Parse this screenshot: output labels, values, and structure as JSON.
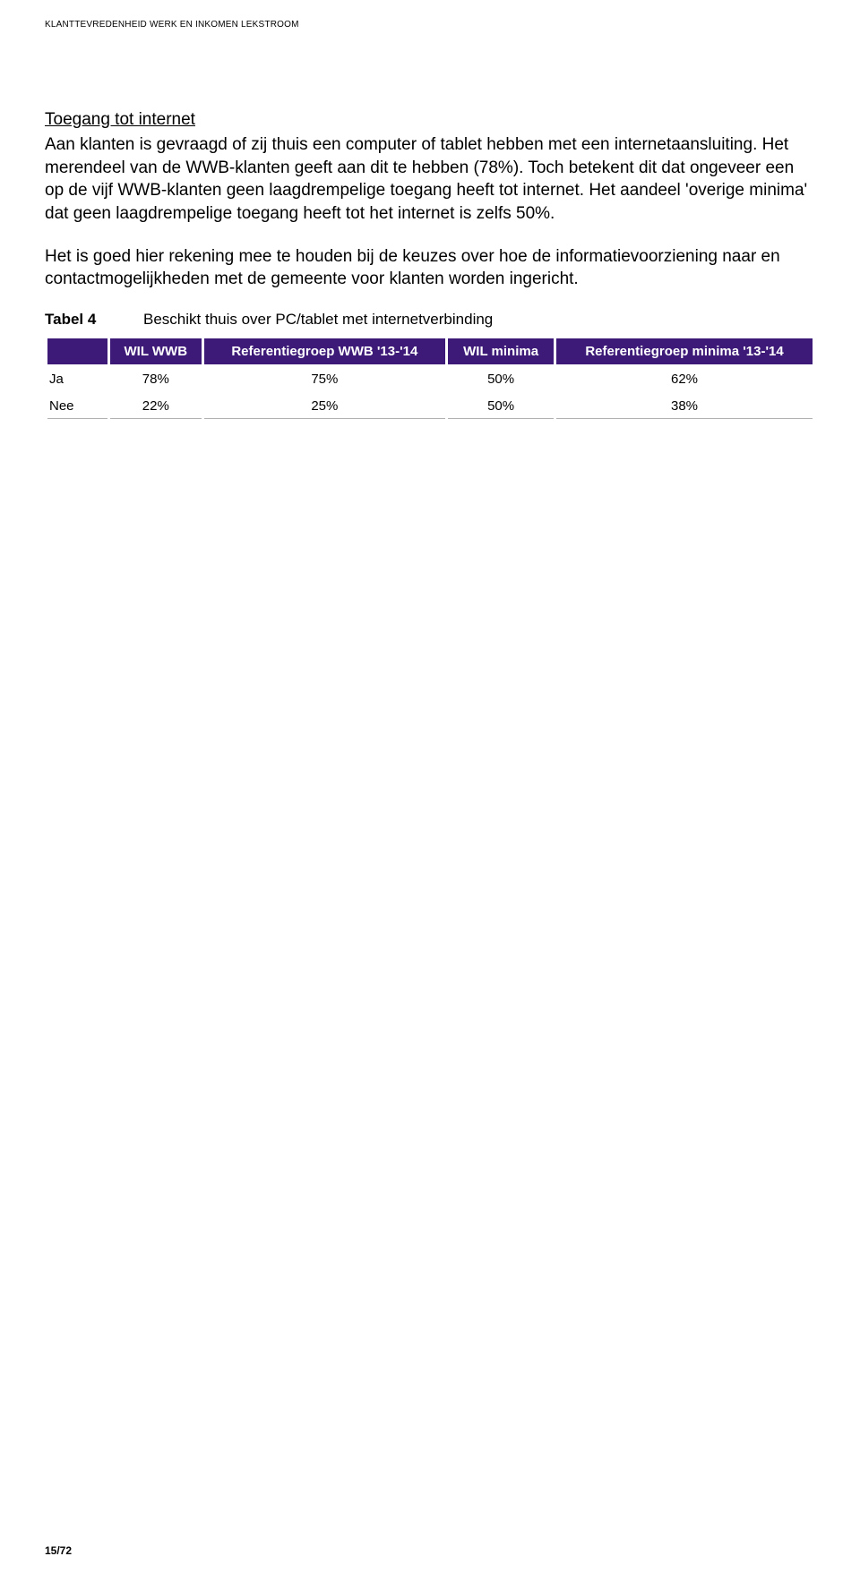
{
  "header": "KLANTTEVREDENHEID WERK EN INKOMEN LEKSTROOM",
  "section_title": "Toegang tot internet",
  "paragraph1": "Aan klanten is gevraagd of zij thuis een computer of tablet hebben met een internetaansluiting. Het merendeel van de WWB-klanten geeft aan dit te hebben (78%). Toch betekent dit dat ongeveer een op de vijf WWB-klanten geen laagdrempelige toegang heeft tot internet. Het aandeel 'overige minima' dat geen laagdrempelige toegang heeft tot het internet is zelfs 50%.",
  "paragraph2": "Het is goed hier rekening mee te houden bij de keuzes over hoe de informatievoorziening naar en contactmogelijkheden met de gemeente voor klanten worden ingericht.",
  "table": {
    "label": "Tabel 4",
    "caption": "Beschikt thuis over PC/tablet met internetverbinding",
    "header_bg": "#3d1a78",
    "header_fg": "#ffffff",
    "columns": [
      "",
      "WIL WWB",
      "Referentiegroep WWB '13-'14",
      "WIL minima",
      "Referentiegroep minima '13-'14"
    ],
    "rows": [
      {
        "label": "Ja",
        "cells": [
          "78%",
          "75%",
          "50%",
          "62%"
        ]
      },
      {
        "label": "Nee",
        "cells": [
          "22%",
          "25%",
          "50%",
          "38%"
        ]
      }
    ]
  },
  "footer": "15/72"
}
